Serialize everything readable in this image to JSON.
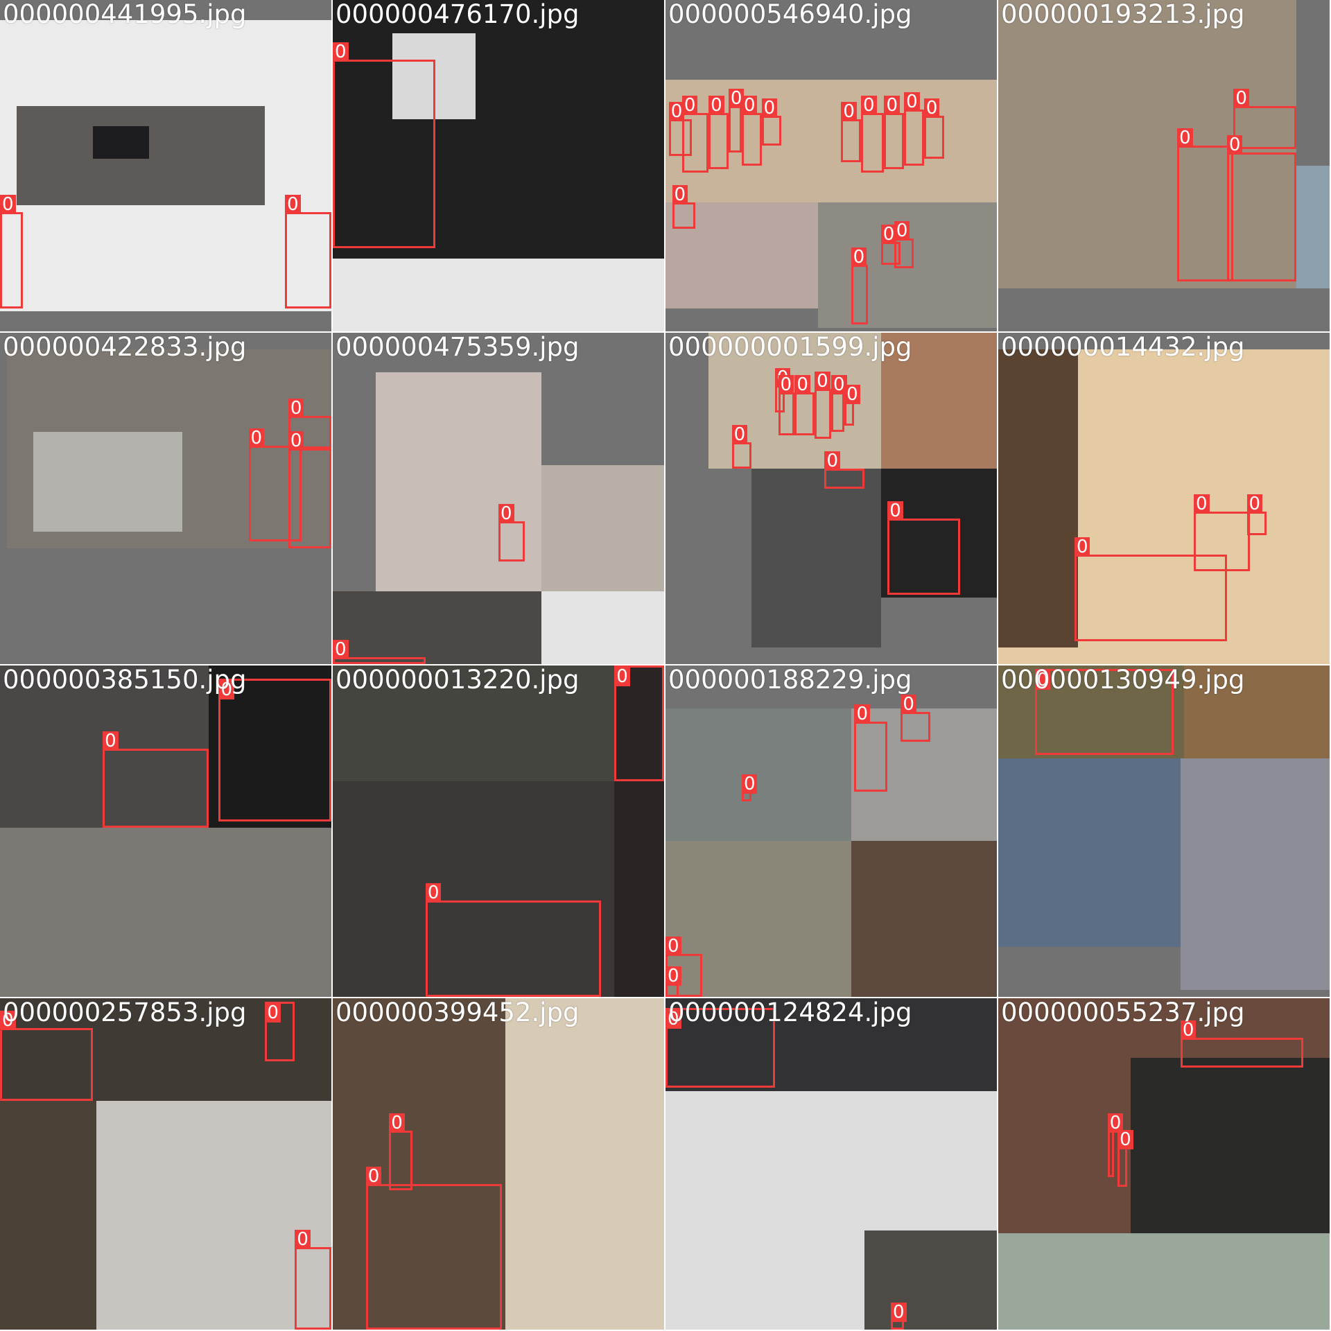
{
  "colors": {
    "box": "#f03a3a",
    "label_text": "#ffffff",
    "pad": "#727272"
  },
  "tiles": [
    {
      "filename": "000000441995.jpg",
      "segments": [
        {
          "r": [
            0,
            6,
            100,
            94
          ],
          "c": "#ebebeb"
        },
        {
          "r": [
            5,
            32,
            80,
            62
          ],
          "c": "#5e5a58"
        },
        {
          "r": [
            28,
            38,
            45,
            48
          ],
          "c": "#1d1d1f"
        }
      ],
      "boxes": [
        {
          "r": [
            0,
            64,
            7,
            93
          ],
          "label": "0"
        },
        {
          "r": [
            86,
            64,
            100,
            93
          ],
          "label": "0"
        }
      ]
    },
    {
      "filename": "000000476170.jpg",
      "segments": [
        {
          "r": [
            0,
            0,
            100,
            78
          ],
          "c": "#202020"
        },
        {
          "r": [
            18,
            10,
            43,
            36
          ],
          "c": "#d9d9d9"
        },
        {
          "r": [
            0,
            78,
            100,
            100
          ],
          "c": "#e6e6e6"
        }
      ],
      "boxes": [
        {
          "r": [
            0,
            18,
            31,
            75
          ],
          "label": "0"
        }
      ]
    },
    {
      "filename": "000000546940.jpg",
      "segments": [
        {
          "r": [
            0,
            24,
            100,
            61
          ],
          "c": "#c8b49a"
        },
        {
          "r": [
            0,
            61,
            46,
            93
          ],
          "c": "#b7a7a0"
        },
        {
          "r": [
            46,
            61,
            100,
            99
          ],
          "c": "#8e8a84"
        }
      ],
      "boxes": [
        {
          "r": [
            1,
            36,
            8,
            47
          ],
          "label": "0"
        },
        {
          "r": [
            5,
            34,
            13,
            52
          ],
          "label": "0"
        },
        {
          "r": [
            13,
            34,
            19,
            51
          ],
          "label": "0"
        },
        {
          "r": [
            19,
            32,
            23,
            46
          ],
          "label": "0"
        },
        {
          "r": [
            23,
            34,
            29,
            50
          ],
          "label": "0"
        },
        {
          "r": [
            29,
            35,
            35,
            44
          ],
          "label": "0"
        },
        {
          "r": [
            53,
            36,
            59,
            49
          ],
          "label": "0"
        },
        {
          "r": [
            59,
            34,
            66,
            52
          ],
          "label": "0"
        },
        {
          "r": [
            66,
            34,
            72,
            51
          ],
          "label": "0"
        },
        {
          "r": [
            72,
            33,
            78,
            50
          ],
          "label": "0"
        },
        {
          "r": [
            78,
            35,
            84,
            48
          ],
          "label": "0"
        },
        {
          "r": [
            2,
            61,
            9,
            69
          ],
          "label": "0"
        },
        {
          "r": [
            56,
            80,
            61,
            98
          ],
          "label": "0"
        },
        {
          "r": [
            65,
            73,
            71,
            80
          ],
          "label": "0"
        },
        {
          "r": [
            69,
            72,
            75,
            81
          ],
          "label": "0"
        }
      ]
    },
    {
      "filename": "000000193213.jpg",
      "segments": [
        {
          "r": [
            0,
            0,
            90,
            87
          ],
          "c": "#9a8d7c"
        },
        {
          "r": [
            90,
            50,
            100,
            87
          ],
          "c": "#8ca0ad"
        },
        {
          "r": [
            0,
            87,
            100,
            100
          ],
          "c": "#727272"
        }
      ],
      "boxes": [
        {
          "r": [
            54,
            44,
            71,
            85
          ],
          "label": "0"
        },
        {
          "r": [
            71,
            32,
            90,
            45
          ],
          "label": "0"
        },
        {
          "r": [
            69,
            46,
            90,
            85
          ],
          "label": "0"
        }
      ]
    },
    {
      "filename": "000000422833.jpg",
      "segments": [
        {
          "r": [
            2,
            5,
            100,
            65
          ],
          "c": "#7c7770"
        },
        {
          "r": [
            10,
            30,
            55,
            60
          ],
          "c": "#b3b2ad"
        }
      ],
      "boxes": [
        {
          "r": [
            75,
            34,
            91,
            63
          ],
          "label": "0"
        },
        {
          "r": [
            87,
            25,
            100,
            35
          ],
          "label": "0"
        },
        {
          "r": [
            87,
            35,
            100,
            65
          ],
          "label": "0"
        }
      ]
    },
    {
      "filename": "000000475359.jpg",
      "segments": [
        {
          "r": [
            13,
            12,
            63,
            78
          ],
          "c": "#c9bdb7"
        },
        {
          "r": [
            63,
            40,
            100,
            78
          ],
          "c": "#b8b0a6"
        },
        {
          "r": [
            0,
            78,
            63,
            100
          ],
          "c": "#4c4846"
        },
        {
          "r": [
            63,
            78,
            100,
            100
          ],
          "c": "#e4e4e4"
        }
      ],
      "boxes": [
        {
          "r": [
            50,
            57,
            58,
            69
          ],
          "label": "0"
        },
        {
          "r": [
            0,
            98,
            28,
            100
          ],
          "label": "0"
        }
      ]
    },
    {
      "filename": "000000001599.jpg",
      "segments": [
        {
          "r": [
            13,
            0,
            65,
            41
          ],
          "c": "#c3b7a2"
        },
        {
          "r": [
            65,
            0,
            100,
            41
          ],
          "c": "#a87a5e"
        },
        {
          "r": [
            26,
            41,
            65,
            95
          ],
          "c": "#4f4f4f"
        },
        {
          "r": [
            65,
            41,
            100,
            80
          ],
          "c": "#232323"
        }
      ],
      "boxes": [
        {
          "r": [
            33,
            16,
            36,
            24
          ],
          "label": "0"
        },
        {
          "r": [
            34,
            18,
            39,
            31
          ],
          "label": "0"
        },
        {
          "r": [
            39,
            18,
            45,
            31
          ],
          "label": "0"
        },
        {
          "r": [
            45,
            17,
            50,
            32
          ],
          "label": "0"
        },
        {
          "r": [
            50,
            18,
            54,
            30
          ],
          "label": "0"
        },
        {
          "r": [
            54,
            21,
            57,
            28
          ],
          "label": "0"
        },
        {
          "r": [
            20,
            33,
            26,
            41
          ],
          "label": "0"
        },
        {
          "r": [
            48,
            41,
            60,
            47
          ],
          "label": "0"
        },
        {
          "r": [
            67,
            56,
            89,
            79
          ],
          "label": "0"
        }
      ]
    },
    {
      "filename": "000000014432.jpg",
      "segments": [
        {
          "r": [
            0,
            5,
            100,
            100
          ],
          "c": "#e4cba3"
        },
        {
          "r": [
            0,
            5,
            24,
            95
          ],
          "c": "#5a4331"
        }
      ],
      "boxes": [
        {
          "r": [
            23,
            67,
            69,
            93
          ],
          "label": "0"
        },
        {
          "r": [
            59,
            54,
            76,
            72
          ],
          "label": "0"
        },
        {
          "r": [
            75,
            54,
            81,
            61
          ],
          "label": "0"
        }
      ]
    },
    {
      "filename": "000000385150.jpg",
      "segments": [
        {
          "r": [
            0,
            0,
            63,
            49
          ],
          "c": "#4a4747"
        },
        {
          "r": [
            63,
            0,
            100,
            49
          ],
          "c": "#1b1b1b"
        },
        {
          "r": [
            0,
            49,
            100,
            100
          ],
          "c": "#7c7873"
        }
      ],
      "boxes": [
        {
          "r": [
            31,
            25,
            63,
            49
          ],
          "label": "0"
        },
        {
          "r": [
            66,
            4,
            100,
            47
          ],
          "label": "0"
        }
      ]
    },
    {
      "filename": "000000013220.jpg",
      "segments": [
        {
          "r": [
            0,
            0,
            85,
            35
          ],
          "c": "#454540"
        },
        {
          "r": [
            0,
            35,
            85,
            100
          ],
          "c": "#3b3837"
        },
        {
          "r": [
            85,
            0,
            100,
            100
          ],
          "c": "#2a2424"
        }
      ],
      "boxes": [
        {
          "r": [
            28,
            71,
            81,
            100
          ],
          "label": "0"
        },
        {
          "r": [
            85,
            0,
            100,
            35
          ],
          "label": "0"
        }
      ]
    },
    {
      "filename": "000000188229.jpg",
      "segments": [
        {
          "r": [
            0,
            13,
            56,
            53
          ],
          "c": "#7a807d"
        },
        {
          "r": [
            56,
            13,
            100,
            53
          ],
          "c": "#9d9b98"
        },
        {
          "r": [
            0,
            53,
            56,
            100
          ],
          "c": "#8a8778"
        },
        {
          "r": [
            56,
            53,
            100,
            100
          ],
          "c": "#5e4a3d"
        }
      ],
      "boxes": [
        {
          "r": [
            57,
            17,
            67,
            38
          ],
          "label": "0"
        },
        {
          "r": [
            71,
            14,
            80,
            23
          ],
          "label": "0"
        },
        {
          "r": [
            23,
            38,
            26,
            41
          ],
          "label": "0"
        },
        {
          "r": [
            0,
            87,
            11,
            100
          ],
          "label": "0"
        },
        {
          "r": [
            0,
            96,
            4,
            100
          ],
          "label": "0"
        }
      ]
    },
    {
      "filename": "000000130949.jpg",
      "segments": [
        {
          "r": [
            0,
            0,
            56,
            28
          ],
          "c": "#6f6547"
        },
        {
          "r": [
            56,
            0,
            100,
            28
          ],
          "c": "#8b6a47"
        },
        {
          "r": [
            0,
            28,
            55,
            85
          ],
          "c": "#5c6e86"
        },
        {
          "r": [
            55,
            28,
            100,
            98
          ],
          "c": "#8c8d96"
        }
      ],
      "boxes": [
        {
          "r": [
            11,
            1,
            53,
            27
          ],
          "label": "0"
        }
      ]
    },
    {
      "filename": "000000257853.jpg",
      "segments": [
        {
          "r": [
            0,
            0,
            100,
            31
          ],
          "c": "#3f3a34"
        },
        {
          "r": [
            0,
            31,
            29,
            100
          ],
          "c": "#4a4237"
        },
        {
          "r": [
            29,
            31,
            100,
            100
          ],
          "c": "#c8c4bf"
        }
      ],
      "boxes": [
        {
          "r": [
            0,
            9,
            28,
            31
          ],
          "label": "0"
        },
        {
          "r": [
            80,
            1,
            89,
            19
          ],
          "label": "0"
        },
        {
          "r": [
            89,
            75,
            100,
            100
          ],
          "label": "0"
        }
      ]
    },
    {
      "filename": "000000399452.jpg",
      "segments": [
        {
          "r": [
            0,
            0,
            52,
            100
          ],
          "c": "#5c4a3c"
        },
        {
          "r": [
            52,
            0,
            100,
            100
          ],
          "c": "#d8cbb5"
        }
      ],
      "boxes": [
        {
          "r": [
            17,
            40,
            24,
            58
          ],
          "label": "0"
        },
        {
          "r": [
            10,
            56,
            51,
            100
          ],
          "label": "0"
        }
      ]
    },
    {
      "filename": "000000124824.jpg",
      "segments": [
        {
          "r": [
            0,
            0,
            100,
            28
          ],
          "c": "#323234"
        },
        {
          "r": [
            0,
            28,
            100,
            100
          ],
          "c": "#dcdcdc"
        },
        {
          "r": [
            60,
            70,
            100,
            100
          ],
          "c": "#4e4a45"
        }
      ],
      "boxes": [
        {
          "r": [
            0,
            3,
            33,
            27
          ],
          "label": "0"
        },
        {
          "r": [
            68,
            97,
            72,
            100
          ],
          "label": "0"
        }
      ]
    },
    {
      "filename": "000000055237.jpg",
      "segments": [
        {
          "r": [
            0,
            0,
            100,
            71
          ],
          "c": "#6a4a3c"
        },
        {
          "r": [
            0,
            71,
            100,
            100
          ],
          "c": "#9aa79b"
        },
        {
          "r": [
            40,
            18,
            100,
            71
          ],
          "c": "#2a2a28"
        }
      ],
      "boxes": [
        {
          "r": [
            55,
            12,
            92,
            21
          ],
          "label": "0"
        },
        {
          "r": [
            33,
            40,
            35,
            54
          ],
          "label": "0"
        },
        {
          "r": [
            36,
            45,
            39,
            57
          ],
          "label": "0"
        }
      ]
    }
  ]
}
